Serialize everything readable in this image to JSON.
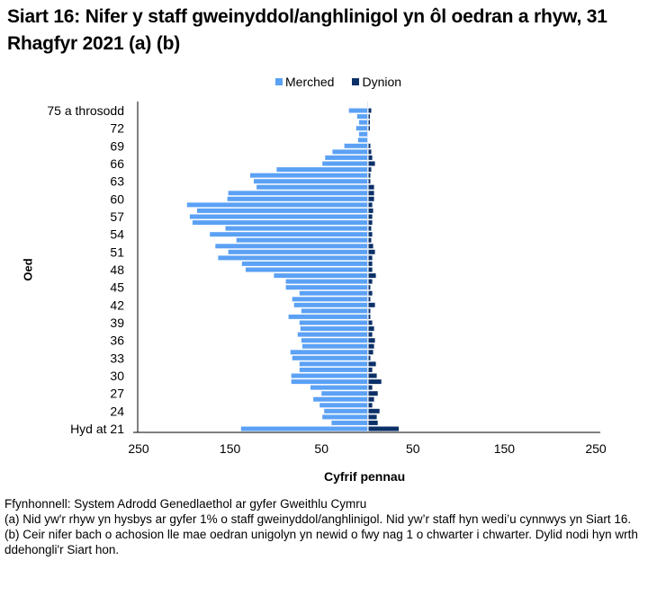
{
  "title": "Siart 16: Nifer y staff gweinyddol/anghlinigol yn ôl oedran a rhyw, 31 Rhagfyr 2021 (a) (b)",
  "legend": [
    {
      "label": "Merched",
      "color": "#5BA1F5"
    },
    {
      "label": "Dynion",
      "color": "#0B3068"
    }
  ],
  "axes": {
    "ylabel": "Oed",
    "xlabel": "Cyfrif pennau",
    "xticks": [
      "250",
      "150",
      "50",
      "50",
      "150",
      "250"
    ]
  },
  "notes": {
    "source": "Ffynhonnell: System Adrodd Genedlaethol ar gyfer Gweithlu Cymru",
    "a": "(a) Nid yw'r rhyw yn hysbys ar gyfer 1% o staff gweinyddol/anghlinigol. Nid yw’r staff hyn wedi’u cynnwys yn Siart 16.",
    "b": "(b) Ceir nifer bach o achosion lle mae oedran unigolyn yn newid o fwy nag 1 o chwarter i chwarter. Dylid nodi hyn wrth ddehongli'r Siart hon."
  },
  "chart_data": {
    "type": "bar",
    "orientation": "horizontal",
    "subtype": "population-pyramid",
    "title": "Siart 16: Nifer y staff gweinyddol/anghlinigol yn ôl oedran a rhyw, 31 Rhagfyr 2021 (a) (b)",
    "xlabel": "Cyfrif pennau",
    "ylabel": "Oed",
    "xlim": [
      -250,
      250
    ],
    "xtick_values": [
      -250,
      -150,
      -50,
      50,
      150,
      250
    ],
    "xtick_labels": [
      "250",
      "150",
      "50",
      "50",
      "150",
      "250"
    ],
    "legend_position": "top",
    "grid": false,
    "categories": [
      "Hyd at 21",
      "22",
      "23",
      "24",
      "25",
      "26",
      "27",
      "28",
      "29",
      "30",
      "31",
      "32",
      "33",
      "34",
      "35",
      "36",
      "37",
      "38",
      "39",
      "40",
      "41",
      "42",
      "43",
      "44",
      "45",
      "46",
      "47",
      "48",
      "49",
      "50",
      "51",
      "52",
      "53",
      "54",
      "55",
      "56",
      "57",
      "58",
      "59",
      "60",
      "61",
      "62",
      "63",
      "64",
      "65",
      "66",
      "67",
      "68",
      "69",
      "70",
      "71",
      "72",
      "73",
      "74",
      "75 a throsodd"
    ],
    "visible_category_labels": [
      "Hyd at 21",
      "24",
      "27",
      "30",
      "33",
      "36",
      "39",
      "42",
      "45",
      "48",
      "51",
      "54",
      "57",
      "60",
      "63",
      "66",
      "69",
      "72",
      "75 a throsodd"
    ],
    "series": [
      {
        "name": "Merched",
        "color": "#5BA1F5",
        "side": "left",
        "values": [
          138,
          39,
          49,
          47,
          52,
          59,
          50,
          62,
          83,
          83,
          74,
          74,
          82,
          84,
          71,
          72,
          76,
          73,
          74,
          86,
          72,
          80,
          82,
          74,
          89,
          89,
          102,
          133,
          137,
          163,
          152,
          166,
          143,
          172,
          155,
          191,
          194,
          186,
          197,
          153,
          152,
          121,
          124,
          128,
          99,
          49,
          46,
          38,
          25,
          10,
          9,
          12,
          9,
          11,
          20
        ]
      },
      {
        "name": "Dynion",
        "color": "#0B3068",
        "side": "right",
        "values": [
          33,
          10,
          9,
          12,
          4,
          6,
          10,
          4,
          14,
          9,
          4,
          8,
          2,
          5,
          6,
          7,
          4,
          6,
          4,
          2,
          2,
          7,
          2,
          4,
          2,
          4,
          8,
          4,
          4,
          4,
          7,
          5,
          3,
          4,
          3,
          4,
          4,
          5,
          4,
          6,
          6,
          6,
          2,
          2,
          3,
          7,
          4,
          3,
          2,
          0,
          0,
          1,
          1,
          1,
          3
        ]
      }
    ]
  }
}
